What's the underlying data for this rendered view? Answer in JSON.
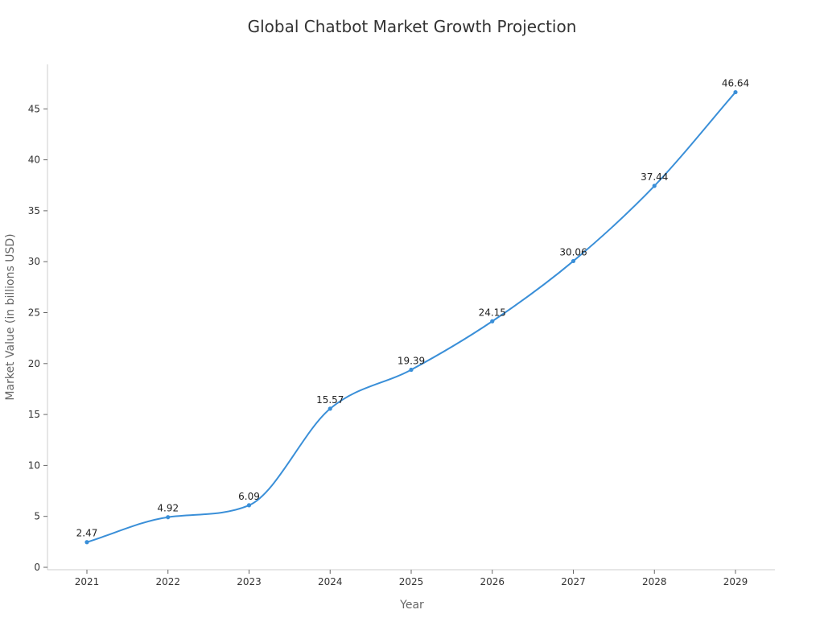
{
  "chart_data": {
    "type": "line",
    "title": "Global Chatbot Market Growth Projection",
    "xlabel": "Year",
    "ylabel": "Market Value (in billions USD)",
    "categories": [
      "2021",
      "2022",
      "2023",
      "2024",
      "2025",
      "2026",
      "2027",
      "2028",
      "2029"
    ],
    "series": [
      {
        "values": [
          2.47,
          4.92,
          6.09,
          15.57,
          19.39,
          24.15,
          30.06,
          37.44,
          46.64
        ],
        "data_labels": [
          "2.47",
          "4.92",
          "6.09",
          "15.57",
          "19.39",
          "24.15",
          "30.06",
          "37.44",
          "46.64"
        ],
        "color": "#3a8fd8"
      }
    ],
    "ylim": [
      0,
      49
    ],
    "yticks": [
      0,
      5,
      10,
      15,
      20,
      25,
      30,
      35,
      40,
      45
    ],
    "ytick_labels": [
      "0",
      "5",
      "10",
      "15",
      "20",
      "25",
      "30",
      "35",
      "40",
      "45"
    ],
    "grid": false,
    "legend": "none"
  }
}
